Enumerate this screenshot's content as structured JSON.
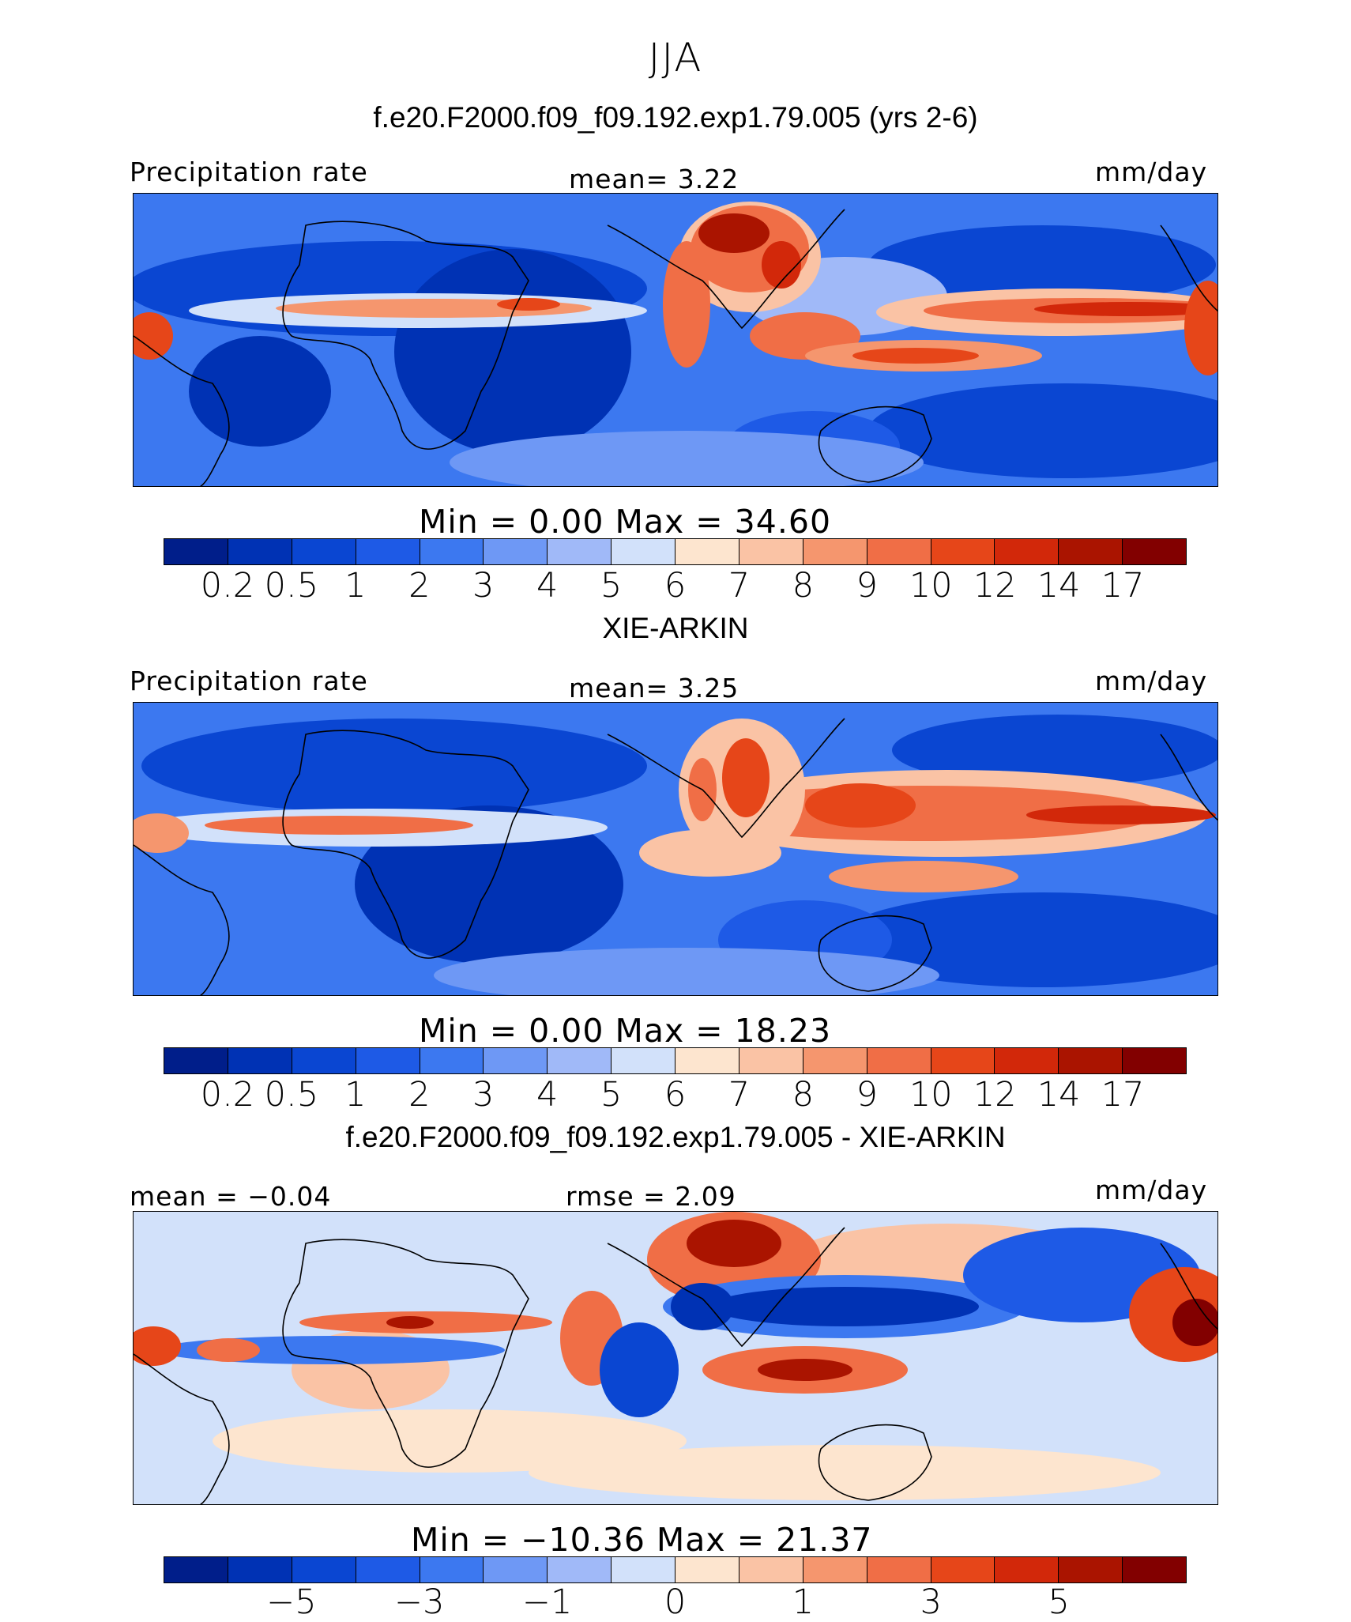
{
  "suptitle": "JJA",
  "colors": {
    "precip_levels": [
      "#001e8a",
      "#0032b4",
      "#0a46d2",
      "#1e5ae6",
      "#3c78f0",
      "#6e98f5",
      "#a0b9f8",
      "#d2e1fa",
      "#fde5cf",
      "#fac3a5",
      "#f5966e",
      "#f06e46",
      "#e64619",
      "#d2280a",
      "#aa1400",
      "#820000"
    ],
    "diff_levels": [
      "#001e8a",
      "#0032b4",
      "#0a46d2",
      "#1e5ae6",
      "#3c78f0",
      "#6e98f5",
      "#a0b9f8",
      "#d2e1fa",
      "#fde5cf",
      "#fac3a5",
      "#f5966e",
      "#f06e46",
      "#e64619",
      "#d2280a",
      "#aa1400",
      "#820000"
    ]
  },
  "panels": [
    {
      "title": "f.e20.F2000.f09_f09.192.exp1.79.005 (yrs 2-6)",
      "left_label": "Precipitation rate",
      "center_label": "mean=    3.22",
      "right_label": "mm/day",
      "minmax": "Min  =     0.00  Max  =    34.60",
      "ticks": [
        "0.2",
        "0.5",
        "1",
        "2",
        "3",
        "4",
        "5",
        "6",
        "7",
        "8",
        "9",
        "10",
        "12",
        "14",
        "17"
      ]
    },
    {
      "title": "XIE-ARKIN",
      "left_label": "Precipitation rate",
      "center_label": "mean=    3.25",
      "right_label": "mm/day",
      "minmax": "Min  =     0.00  Max  =    18.23",
      "ticks": [
        "0.2",
        "0.5",
        "1",
        "2",
        "3",
        "4",
        "5",
        "6",
        "7",
        "8",
        "9",
        "10",
        "12",
        "14",
        "17"
      ]
    },
    {
      "title": "f.e20.F2000.f09_f09.192.exp1.79.005 - XIE-ARKIN",
      "left_label": "mean  =   −0.04",
      "center_label": "rmse  =    2.09",
      "right_label": "mm/day",
      "minmax": "Min  =  −10.36  Max  =    21.37",
      "ticks": [
        "−5",
        "−3",
        "−1",
        "0",
        "1",
        "3",
        "5"
      ]
    }
  ]
}
